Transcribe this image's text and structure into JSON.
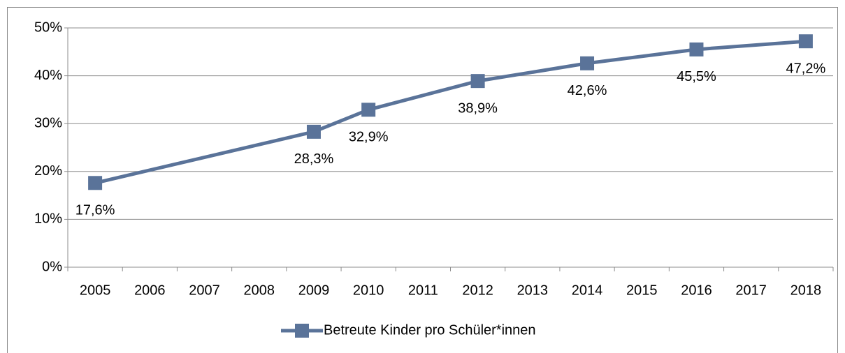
{
  "chart_data": {
    "type": "line",
    "x": [
      2005,
      2009,
      2010,
      2012,
      2014,
      2016,
      2018
    ],
    "series": [
      {
        "name": "Betreute Kinder pro Schüler*innen",
        "color": "#5a7399",
        "values": [
          17.6,
          28.3,
          32.9,
          38.9,
          42.6,
          45.5,
          47.2
        ],
        "value_labels": [
          "17,6%",
          "28,3%",
          "32,9%",
          "38,9%",
          "42,6%",
          "45,5%",
          "47,2%"
        ]
      }
    ],
    "xlim": [
      2004.5,
      2018.5
    ],
    "xticks": [
      2005,
      2006,
      2007,
      2008,
      2009,
      2010,
      2011,
      2012,
      2013,
      2014,
      2015,
      2016,
      2017,
      2018
    ],
    "ylim": [
      0,
      50
    ],
    "yticks": [
      {
        "value": 0,
        "label": "0%"
      },
      {
        "value": 10,
        "label": "10%"
      },
      {
        "value": 20,
        "label": "20%"
      },
      {
        "value": 30,
        "label": "30%"
      },
      {
        "value": 40,
        "label": "40%"
      },
      {
        "value": 50,
        "label": "50%"
      }
    ],
    "grid": true,
    "legend": "bottom"
  }
}
